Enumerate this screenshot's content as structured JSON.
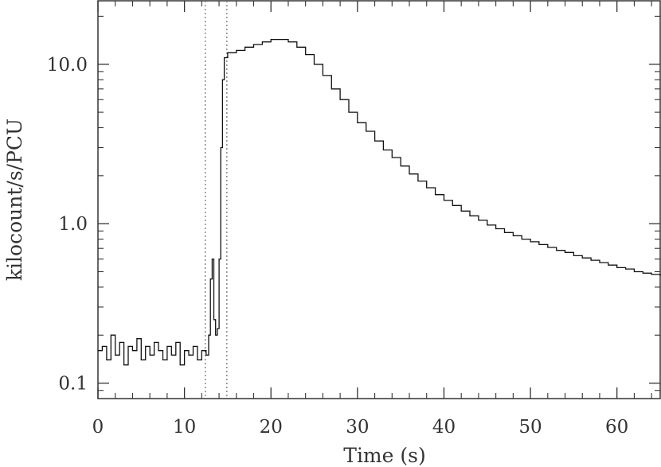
{
  "chart_data": {
    "type": "line",
    "title": "",
    "xlabel": "Time (s)",
    "ylabel": "kilocount/s/PCU",
    "xlim": [
      0,
      65
    ],
    "ylim": [
      0.08,
      25
    ],
    "yscale": "log",
    "grid": false,
    "x_ticks": [
      0,
      10,
      20,
      30,
      40,
      50,
      60
    ],
    "x_tick_labels": [
      "0",
      "10",
      "20",
      "30",
      "40",
      "50",
      "60"
    ],
    "y_ticks": [
      0.1,
      1.0,
      10.0
    ],
    "y_tick_labels": [
      "0.1",
      "1.0",
      "10.0"
    ],
    "vertical_markers": [
      12.4,
      14.9
    ],
    "series": [
      {
        "points": [
          [
            0,
            0.16
          ],
          [
            0.5,
            0.17
          ],
          [
            1,
            0.14
          ],
          [
            1.5,
            0.2
          ],
          [
            2,
            0.15
          ],
          [
            2.5,
            0.18
          ],
          [
            3,
            0.13
          ],
          [
            3.5,
            0.17
          ],
          [
            4,
            0.16
          ],
          [
            4.5,
            0.19
          ],
          [
            5,
            0.14
          ],
          [
            5.5,
            0.17
          ],
          [
            6,
            0.15
          ],
          [
            6.5,
            0.18
          ],
          [
            7,
            0.16
          ],
          [
            7.5,
            0.14
          ],
          [
            8,
            0.17
          ],
          [
            8.5,
            0.15
          ],
          [
            9,
            0.18
          ],
          [
            9.5,
            0.13
          ],
          [
            10,
            0.16
          ],
          [
            10.5,
            0.15
          ],
          [
            11,
            0.17
          ],
          [
            11.5,
            0.14
          ],
          [
            12,
            0.16
          ],
          [
            12.5,
            0.15
          ],
          [
            12.8,
            0.2
          ],
          [
            13.0,
            0.45
          ],
          [
            13.2,
            0.6
          ],
          [
            13.4,
            0.25
          ],
          [
            13.6,
            0.2
          ],
          [
            13.8,
            0.22
          ],
          [
            14.0,
            0.6
          ],
          [
            14.2,
            3.0
          ],
          [
            14.4,
            8.0
          ],
          [
            14.6,
            11.0
          ],
          [
            15,
            11.8
          ],
          [
            16,
            12.2
          ],
          [
            17,
            12.8
          ],
          [
            18,
            13.3
          ],
          [
            19,
            13.8
          ],
          [
            20,
            14.3
          ],
          [
            21,
            14.3
          ],
          [
            22,
            13.8
          ],
          [
            23,
            12.8
          ],
          [
            24,
            11.5
          ],
          [
            25,
            10.0
          ],
          [
            26,
            8.5
          ],
          [
            27,
            7.0
          ],
          [
            28,
            6.0
          ],
          [
            29,
            5.0
          ],
          [
            30,
            4.3
          ],
          [
            31,
            3.8
          ],
          [
            32,
            3.3
          ],
          [
            33,
            2.9
          ],
          [
            34,
            2.6
          ],
          [
            35,
            2.3
          ],
          [
            36,
            2.05
          ],
          [
            37,
            1.85
          ],
          [
            38,
            1.68
          ],
          [
            39,
            1.52
          ],
          [
            40,
            1.4
          ],
          [
            41,
            1.3
          ],
          [
            42,
            1.2
          ],
          [
            43,
            1.12
          ],
          [
            44,
            1.05
          ],
          [
            45,
            0.98
          ],
          [
            46,
            0.93
          ],
          [
            47,
            0.88
          ],
          [
            48,
            0.84
          ],
          [
            49,
            0.8
          ],
          [
            50,
            0.77
          ],
          [
            51,
            0.74
          ],
          [
            52,
            0.71
          ],
          [
            53,
            0.68
          ],
          [
            54,
            0.66
          ],
          [
            55,
            0.63
          ],
          [
            56,
            0.61
          ],
          [
            57,
            0.59
          ],
          [
            58,
            0.57
          ],
          [
            59,
            0.55
          ],
          [
            60,
            0.53
          ],
          [
            61,
            0.52
          ],
          [
            62,
            0.5
          ],
          [
            63,
            0.49
          ],
          [
            64,
            0.48
          ],
          [
            65,
            0.47
          ]
        ]
      }
    ]
  }
}
